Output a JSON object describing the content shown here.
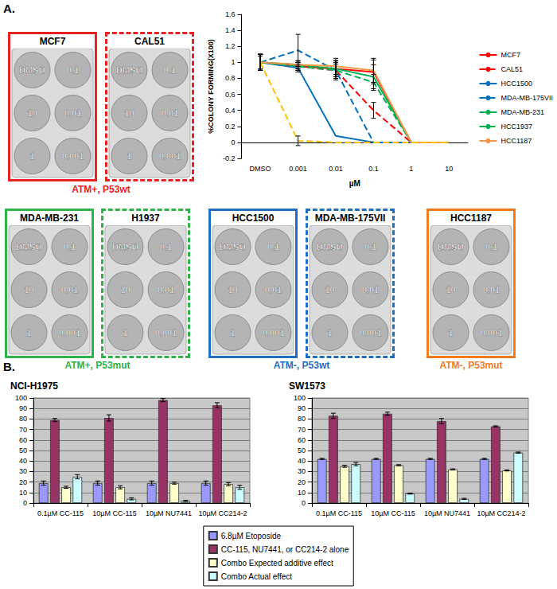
{
  "panel_labels": {
    "a": "A.",
    "b": "B."
  },
  "plate_groups": [
    {
      "label": "ATM+, P53wt",
      "color": "#e8231f",
      "plates": [
        {
          "name": "MCF7",
          "line_style": "solid",
          "wells": [
            [
              "DMSO",
              "0.1"
            ],
            [
              "10",
              "0.01"
            ],
            [
              "1",
              "0.001"
            ]
          ]
        },
        {
          "name": "CAL51",
          "line_style": "dashed",
          "wells": [
            [
              "DMSO",
              "0.1"
            ],
            [
              "10",
              "0.01"
            ],
            [
              "1",
              "0.001"
            ]
          ]
        }
      ]
    },
    {
      "label": "ATM+, P53mut",
      "color": "#2db34a",
      "plates": [
        {
          "name": "MDA-MB-231",
          "line_style": "solid",
          "wells": [
            [
              "DMSO",
              "0.1"
            ],
            [
              "10",
              "0.01"
            ],
            [
              "1",
              "0.001"
            ]
          ]
        },
        {
          "name": "H1937",
          "line_style": "dashed",
          "wells": [
            [
              "DMSO",
              "0.1"
            ],
            [
              "10",
              "0.01"
            ],
            [
              "1",
              "0.001"
            ]
          ]
        }
      ]
    },
    {
      "label": "ATM-, P53wt",
      "color": "#1f6fc1",
      "plates": [
        {
          "name": "HCC1500",
          "line_style": "solid",
          "wells": [
            [
              "DMSO",
              "0.1"
            ],
            [
              "10",
              "0.01"
            ],
            [
              "1",
              "0.001"
            ]
          ]
        },
        {
          "name": "MDA-MB-175VII",
          "line_style": "dashed",
          "wells": [
            [
              "DMSO",
              "0.1"
            ],
            [
              "10",
              "0.01"
            ],
            [
              "1",
              "0.001"
            ]
          ]
        }
      ]
    },
    {
      "label": "ATM-, P53mut",
      "color": "#f07d1f",
      "plates": [
        {
          "name": "HCC1187",
          "line_style": "solid",
          "wells": [
            [
              "DMSO",
              "0.1"
            ],
            [
              "10",
              "0.01"
            ],
            [
              "1",
              "0.001"
            ]
          ]
        }
      ]
    }
  ],
  "chart_data": [
    {
      "type": "line",
      "x_label": "µM",
      "y_label": "%COLONY FORMING(X100)",
      "categories": [
        "DMSO",
        "0.001",
        "0.01",
        "0.1",
        "1",
        "10"
      ],
      "ylim": [
        -0.2,
        1.6
      ],
      "yticks": [
        -0.2,
        0,
        0.2,
        0.4,
        0.6,
        0.8,
        1,
        1.2,
        1.4,
        1.6
      ],
      "grid": false,
      "legend": "right",
      "series": [
        {
          "name": "MCF7",
          "color": "#ff0000",
          "line_style": "solid",
          "values": [
            1,
            0.95,
            0.92,
            0.88,
            0,
            0
          ],
          "errors": [
            0.1,
            0.05,
            0.1,
            0.15,
            0,
            0
          ]
        },
        {
          "name": "CAL51",
          "color": "#ff0000",
          "line_style": "dashed",
          "values": [
            1,
            0.95,
            0.9,
            0.4,
            0,
            0
          ],
          "errors": [
            0.08,
            0.05,
            0.08,
            0.1,
            0,
            0
          ]
        },
        {
          "name": "HCC1500",
          "color": "#0070c0",
          "line_style": "solid",
          "values": [
            1,
            0.93,
            0.08,
            0,
            0,
            0
          ],
          "errors": [
            0.1,
            0.05,
            0,
            0,
            0,
            0
          ]
        },
        {
          "name": "MDA-MB-175VII",
          "color": "#0070c0",
          "line_style": "dashed",
          "values": [
            1,
            1.15,
            0.9,
            0,
            0,
            0
          ],
          "errors": [
            0.1,
            0.2,
            0.1,
            0,
            0,
            0
          ]
        },
        {
          "name": "MDA-MB-231",
          "color": "#00b050",
          "line_style": "solid",
          "values": [
            1,
            0.97,
            0.92,
            0.82,
            0,
            0
          ],
          "errors": [
            0.1,
            0.05,
            0.1,
            0.15,
            0,
            0
          ]
        },
        {
          "name": "HCC1937",
          "color": "#00b050",
          "line_style": "dashed",
          "values": [
            1,
            0.95,
            0.9,
            0.75,
            0,
            0
          ],
          "errors": [
            0.1,
            0.05,
            0.12,
            0.1,
            0,
            0
          ]
        },
        {
          "name": "HCC1187",
          "color": "#f79646",
          "line_style": "solid",
          "values": [
            1,
            0.97,
            0.95,
            0.9,
            0,
            0
          ],
          "errors": [
            0.1,
            0.05,
            0.1,
            0.15,
            0,
            0
          ]
        },
        {
          "name": null,
          "color": "#ffc000",
          "line_style": "dashed",
          "values": [
            1,
            0.02,
            0,
            0,
            0,
            0
          ],
          "errors": [
            0.1,
            0.06,
            0,
            0,
            0,
            0
          ]
        }
      ]
    },
    {
      "type": "bar",
      "title": "NCI-H1975",
      "categories": [
        "0.1µM CC-115",
        "10µM CC-115",
        "10µM NU7441",
        "10µM CC214-2"
      ],
      "ylim": [
        0,
        100
      ],
      "yticks": [
        0,
        10,
        20,
        30,
        40,
        50,
        60,
        70,
        80,
        90,
        100
      ],
      "grid": true,
      "legend": "bottom",
      "series": [
        {
          "name": "6.8µM Etoposide",
          "color": "#9999ff",
          "values": [
            19,
            19,
            19,
            19
          ],
          "errors": [
            2,
            2,
            2,
            2
          ]
        },
        {
          "name": "CC-115, NU7441, or CC214-2 alone",
          "color": "#993366",
          "values": [
            79,
            81,
            98,
            93
          ],
          "errors": [
            1.5,
            3,
            1.5,
            2.5
          ]
        },
        {
          "name": "Combo Expected additive effect",
          "color": "#ffffcc",
          "values": [
            15,
            15,
            19,
            18
          ],
          "errors": [
            1,
            1.5,
            1,
            1.5
          ]
        },
        {
          "name": "Combo Actual effect",
          "color": "#ccffff",
          "values": [
            25,
            4,
            2,
            15
          ],
          "errors": [
            2,
            1,
            0.5,
            2
          ]
        }
      ]
    },
    {
      "type": "bar",
      "title": "SW1573",
      "categories": [
        "0.1µM CC-115",
        "10µM CC-115",
        "10µM NU7441",
        "10µM CC214-2"
      ],
      "ylim": [
        0,
        100
      ],
      "yticks": [
        0,
        10,
        20,
        30,
        40,
        50,
        60,
        70,
        80,
        90,
        100
      ],
      "grid": true,
      "legend": "bottom",
      "series": [
        {
          "name": "6.8µM Etoposide",
          "color": "#9999ff",
          "values": [
            42,
            42,
            42,
            42
          ],
          "errors": [
            0.5,
            0.5,
            0.5,
            0.5
          ]
        },
        {
          "name": "CC-115, NU7441, or CC214-2 alone",
          "color": "#993366",
          "values": [
            83,
            85,
            78,
            73
          ],
          "errors": [
            2.5,
            1.5,
            2.5,
            0.5
          ]
        },
        {
          "name": "Combo Expected additive effect",
          "color": "#ffffcc",
          "values": [
            35,
            36,
            32,
            31
          ],
          "errors": [
            1,
            0.5,
            0.5,
            0.5
          ]
        },
        {
          "name": "Combo Actual effect",
          "color": "#ccffff",
          "values": [
            37,
            9,
            4,
            48
          ],
          "errors": [
            1.5,
            0.5,
            0.5,
            0.5
          ]
        }
      ]
    }
  ]
}
